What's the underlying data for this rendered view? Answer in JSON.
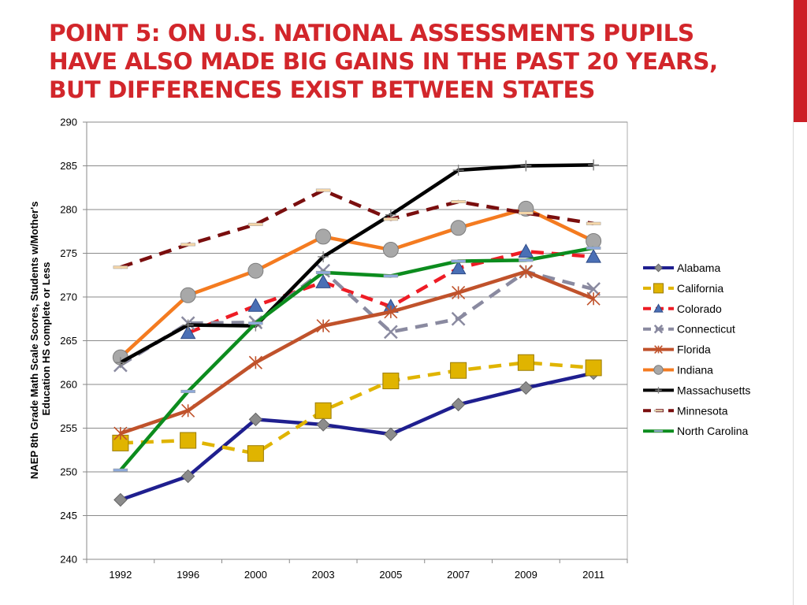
{
  "slide": {
    "title": "POINT 5: ON U.S. NATIONAL ASSESSMENTS PUPILS HAVE ALSO MADE BIG GAINS IN THE PAST 20 YEARS, BUT DIFFERENCES EXIST BETWEEN STATES",
    "accent_color": "#cc1f26"
  },
  "chart_data": {
    "type": "line",
    "title": "",
    "xlabel": "",
    "ylabel": "NAEP 8th Grade Math Scale Scores, Students w/Mother's Education HS complete or Less",
    "ylabel_lines": [
      "NAEP 8th Grade Math Scale Scores, Students w/Mother's",
      "Education HS complete or Less"
    ],
    "categories": [
      "1992",
      "1996",
      "2000",
      "2003",
      "2005",
      "2007",
      "2009",
      "2011"
    ],
    "ylim": [
      240,
      290
    ],
    "yticks": [
      240,
      245,
      250,
      255,
      260,
      265,
      270,
      275,
      280,
      285,
      290
    ],
    "ytick_labels": [
      "240",
      "245",
      "250",
      "255",
      "260",
      "265",
      "270",
      "275",
      "280",
      "285",
      "290"
    ],
    "grid": true,
    "legend_position": "right",
    "series": [
      {
        "name": "Alabama",
        "color": "#1f1f8f",
        "dash": "solid",
        "marker": "diamond",
        "marker_fill": "#8c8c8c",
        "values": [
          246.8,
          249.5,
          256.0,
          255.4,
          254.3,
          257.7,
          259.6,
          261.3
        ]
      },
      {
        "name": "California",
        "color": "#e0b400",
        "dash": "dashed",
        "marker": "square",
        "marker_fill": "#e0b400",
        "values": [
          253.3,
          253.6,
          252.1,
          257.0,
          260.4,
          261.6,
          262.5,
          261.9
        ]
      },
      {
        "name": "Colorado",
        "color": "#ee1c25",
        "dash": "dashed",
        "marker": "triangle",
        "marker_fill": "#4a6fb5",
        "values": [
          null,
          265.9,
          269.0,
          271.7,
          268.9,
          273.3,
          275.2,
          274.6
        ]
      },
      {
        "name": "Connecticut",
        "color": "#8a8aa0",
        "dash": "dashed",
        "marker": "x",
        "marker_fill": "#8a8aa0",
        "values": [
          262.2,
          267.0,
          267.1,
          273.0,
          266.0,
          267.5,
          272.9,
          270.9
        ]
      },
      {
        "name": "Florida",
        "color": "#c0522b",
        "dash": "solid",
        "marker": "star",
        "marker_fill": "#c0522b",
        "values": [
          254.4,
          257.0,
          262.5,
          266.7,
          268.3,
          270.5,
          272.9,
          269.8
        ]
      },
      {
        "name": "Indiana",
        "color": "#f47b20",
        "dash": "solid",
        "marker": "circle",
        "marker_fill": "#a8a8a8",
        "values": [
          263.1,
          270.2,
          273.0,
          276.9,
          275.4,
          277.9,
          280.1,
          276.4
        ]
      },
      {
        "name": "Massachusetts",
        "color": "#000000",
        "dash": "solid",
        "marker": "plus",
        "marker_fill": "#808080",
        "values": [
          262.5,
          266.8,
          266.7,
          274.6,
          279.4,
          284.5,
          285.0,
          285.1
        ]
      },
      {
        "name": "Minnesota",
        "color": "#7a0e0e",
        "dash": "dashed",
        "marker": "dash",
        "marker_fill": "#f5d6a8",
        "values": [
          273.4,
          276.0,
          278.3,
          282.2,
          278.9,
          280.9,
          279.6,
          278.4
        ]
      },
      {
        "name": "North Carolina",
        "color": "#0c8c1e",
        "dash": "solid",
        "marker": "dash",
        "marker_fill": "#8eaadb",
        "values": [
          250.2,
          259.2,
          267.0,
          272.8,
          272.4,
          274.1,
          274.2,
          275.6
        ]
      }
    ]
  }
}
